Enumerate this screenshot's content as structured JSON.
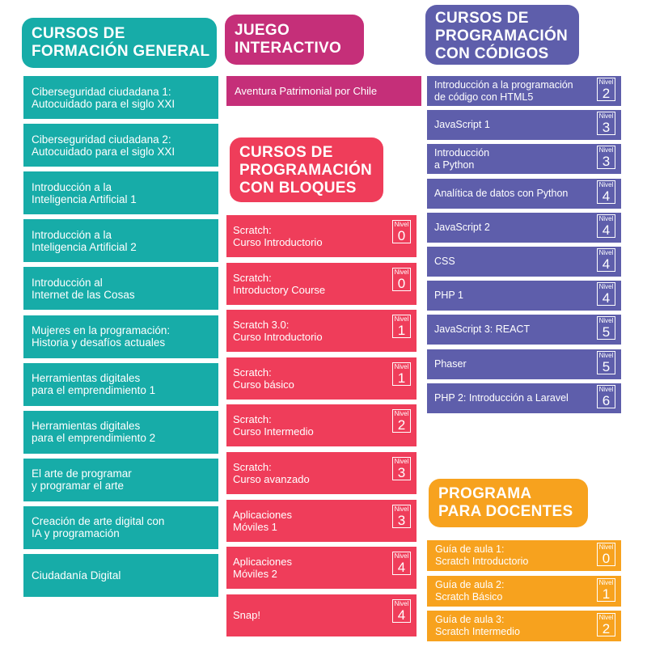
{
  "colors": {
    "general": "#17aca8",
    "juego": "#c52f79",
    "bloques": "#ef3d5a",
    "codigos": "#5e5eab",
    "docentes": "#f7a21e"
  },
  "general": {
    "title": [
      "CURSOS DE",
      "FORMACIÓN GENERAL"
    ],
    "items": [
      [
        "Ciberseguridad ciudadana 1:",
        "Autocuidado para el siglo XXI"
      ],
      [
        "Ciberseguridad ciudadana 2:",
        "Autocuidado para el siglo XXI"
      ],
      [
        "Introducción a la",
        "Inteligencia Artificial 1"
      ],
      [
        "Introducción a la",
        "Inteligencia Artificial 2"
      ],
      [
        "Introducción al",
        "Internet de las Cosas"
      ],
      [
        "Mujeres en la programación:",
        "Historia y desafíos actuales"
      ],
      [
        "Herramientas digitales",
        "para el emprendimiento 1"
      ],
      [
        "Herramientas digitales",
        "para el emprendimiento 2"
      ],
      [
        "El arte de programar",
        "y programar el arte"
      ],
      [
        "Creación de arte digital con",
        "IA y programación"
      ],
      [
        "Ciudadanía Digital",
        ""
      ]
    ]
  },
  "juego": {
    "title": [
      "JUEGO",
      "INTERACTIVO"
    ],
    "item": "Aventura Patrimonial por Chile"
  },
  "bloques": {
    "title": [
      "CURSOS DE",
      "PROGRAMACIÓN",
      "CON BLOQUES"
    ],
    "level_label": "Nivel",
    "items": [
      {
        "lines": [
          "Scratch:",
          "Curso Introductorio"
        ],
        "level": "0"
      },
      {
        "lines": [
          "Scratch:",
          "Introductory Course"
        ],
        "level": "0"
      },
      {
        "lines": [
          "Scratch 3.0:",
          "Curso Introductorio"
        ],
        "level": "1"
      },
      {
        "lines": [
          "Scratch:",
          "Curso básico"
        ],
        "level": "1"
      },
      {
        "lines": [
          "Scratch:",
          "Curso Intermedio"
        ],
        "level": "2"
      },
      {
        "lines": [
          "Scratch:",
          "Curso avanzado"
        ],
        "level": "3"
      },
      {
        "lines": [
          "Aplicaciones",
          "Móviles 1"
        ],
        "level": "3"
      },
      {
        "lines": [
          "Aplicaciones",
          "Móviles 2"
        ],
        "level": "4"
      },
      {
        "lines": [
          "Snap!",
          ""
        ],
        "level": "4"
      }
    ]
  },
  "codigos": {
    "title": [
      "CURSOS DE",
      "PROGRAMACIÓN",
      "CON CÓDIGOS"
    ],
    "level_label": "Nivel",
    "items": [
      {
        "lines": [
          "Introducción a la programación",
          "de código con HTML5"
        ],
        "level": "2"
      },
      {
        "lines": [
          "JavaScript 1",
          ""
        ],
        "level": "3"
      },
      {
        "lines": [
          "Introducción",
          "a Python"
        ],
        "level": "3"
      },
      {
        "lines": [
          "Analítica de datos con Python",
          ""
        ],
        "level": "4"
      },
      {
        "lines": [
          "JavaScript 2",
          ""
        ],
        "level": "4"
      },
      {
        "lines": [
          "CSS",
          ""
        ],
        "level": "4"
      },
      {
        "lines": [
          "PHP 1",
          ""
        ],
        "level": "4"
      },
      {
        "lines": [
          "JavaScript 3: REACT",
          ""
        ],
        "level": "5"
      },
      {
        "lines": [
          "Phaser",
          ""
        ],
        "level": "5"
      },
      {
        "lines": [
          "PHP 2:  Introducción a Laravel",
          ""
        ],
        "level": "6"
      }
    ]
  },
  "docentes": {
    "title": [
      "PROGRAMA",
      "PARA DOCENTES"
    ],
    "level_label": "Nivel",
    "items": [
      {
        "lines": [
          "Guía de aula 1:",
          "Scratch Introductorio"
        ],
        "level": "0"
      },
      {
        "lines": [
          "Guía de aula 2:",
          "Scratch Básico"
        ],
        "level": "1"
      },
      {
        "lines": [
          "Guía de aula 3:",
          "Scratch Intermedio"
        ],
        "level": "2"
      }
    ]
  }
}
